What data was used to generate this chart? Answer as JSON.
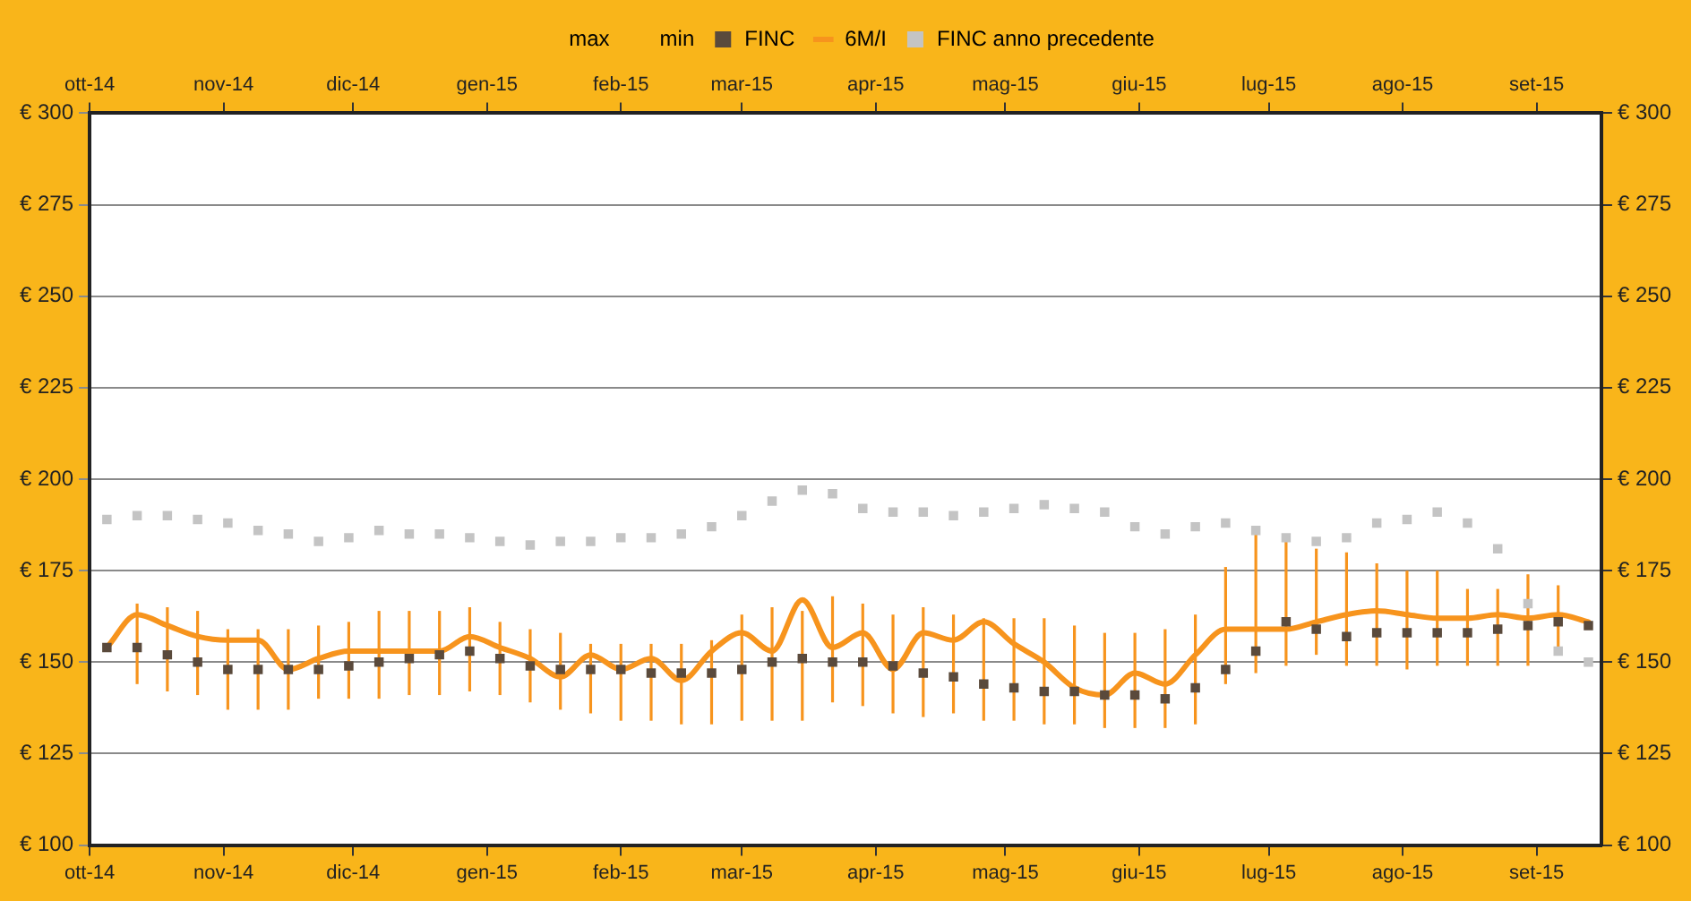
{
  "chart_data": {
    "type": "line",
    "x": [
      "2014-10-05",
      "2014-10-12",
      "2014-10-19",
      "2014-10-26",
      "2014-11-02",
      "2014-11-09",
      "2014-11-16",
      "2014-11-23",
      "2014-11-30",
      "2014-12-07",
      "2014-12-14",
      "2014-12-21",
      "2014-12-28",
      "2015-01-04",
      "2015-01-11",
      "2015-01-18",
      "2015-01-25",
      "2015-02-01",
      "2015-02-08",
      "2015-02-15",
      "2015-02-22",
      "2015-03-01",
      "2015-03-08",
      "2015-03-15",
      "2015-03-22",
      "2015-03-29",
      "2015-04-05",
      "2015-04-12",
      "2015-04-19",
      "2015-04-26",
      "2015-05-03",
      "2015-05-10",
      "2015-05-17",
      "2015-05-24",
      "2015-05-31",
      "2015-06-07",
      "2015-06-14",
      "2015-06-21",
      "2015-06-28",
      "2015-07-05",
      "2015-07-12",
      "2015-07-19",
      "2015-07-26",
      "2015-08-02",
      "2015-08-09",
      "2015-08-16",
      "2015-08-23",
      "2015-08-30",
      "2015-09-06",
      "2015-09-13"
    ],
    "series": [
      {
        "name": "FINC",
        "type": "scatter",
        "marker": "square",
        "color": "#5a4a3c",
        "values": [
          154,
          154,
          152,
          150,
          148,
          148,
          148,
          148,
          149,
          150,
          151,
          152,
          153,
          151,
          149,
          148,
          148,
          148,
          147,
          147,
          147,
          148,
          150,
          151,
          150,
          150,
          149,
          147,
          146,
          144,
          143,
          142,
          142,
          141,
          141,
          140,
          143,
          148,
          153,
          161,
          159,
          157,
          158,
          158,
          158,
          158,
          159,
          160,
          161,
          160
        ],
        "errors": [
          null,
          [
            144,
            166
          ],
          [
            142,
            165
          ],
          [
            141,
            164
          ],
          [
            137,
            159
          ],
          [
            137,
            159
          ],
          [
            137,
            159
          ],
          [
            140,
            160
          ],
          [
            140,
            161
          ],
          [
            140,
            164
          ],
          [
            141,
            164
          ],
          [
            141,
            164
          ],
          [
            142,
            165
          ],
          [
            141,
            161
          ],
          [
            139,
            159
          ],
          [
            137,
            158
          ],
          [
            136,
            155
          ],
          [
            134,
            155
          ],
          [
            134,
            155
          ],
          [
            133,
            155
          ],
          [
            133,
            156
          ],
          [
            134,
            163
          ],
          [
            134,
            165
          ],
          [
            134,
            164
          ],
          [
            139,
            168
          ],
          [
            138,
            166
          ],
          [
            136,
            163
          ],
          [
            135,
            165
          ],
          [
            136,
            163
          ],
          [
            134,
            162
          ],
          [
            134,
            162
          ],
          [
            133,
            162
          ],
          [
            133,
            160
          ],
          [
            132,
            158
          ],
          [
            132,
            158
          ],
          [
            132,
            159
          ],
          [
            133,
            163
          ],
          [
            144,
            176
          ],
          [
            147,
            185
          ],
          [
            149,
            184
          ],
          [
            152,
            181
          ],
          [
            149,
            180
          ],
          [
            149,
            177
          ],
          [
            148,
            175
          ],
          [
            149,
            175
          ],
          [
            149,
            170
          ],
          [
            149,
            170
          ],
          [
            149,
            174
          ],
          [
            153,
            171
          ],
          null
        ]
      },
      {
        "name": "6M/I",
        "type": "line",
        "color": "#f7941d",
        "values": [
          154,
          163,
          160,
          157,
          156,
          156,
          148,
          151,
          153,
          153,
          153,
          153,
          157,
          154,
          151,
          146,
          152,
          148,
          151,
          145,
          153,
          158,
          153,
          167,
          154,
          158,
          148,
          158,
          156,
          161,
          155,
          150,
          143,
          141,
          147,
          144,
          152,
          159,
          159,
          159,
          161,
          163,
          164,
          163,
          162,
          162,
          163,
          162,
          163,
          161
        ]
      },
      {
        "name": "FINC anno precedente",
        "type": "scatter",
        "marker": "square",
        "color": "#c4c4c4",
        "values": [
          189,
          190,
          190,
          189,
          188,
          186,
          185,
          183,
          184,
          186,
          185,
          185,
          184,
          183,
          182,
          183,
          183,
          184,
          184,
          185,
          187,
          190,
          194,
          197,
          196,
          192,
          191,
          191,
          190,
          191,
          192,
          193,
          192,
          191,
          187,
          185,
          187,
          188,
          186,
          184,
          183,
          184,
          188,
          189,
          191,
          188,
          181,
          166,
          153,
          150
        ]
      }
    ],
    "xlim": [
      "2014-10-01",
      "2015-09-16"
    ],
    "xticks": [
      {
        "value": "2014-10-01",
        "label": "ott-14"
      },
      {
        "value": "2014-11-01",
        "label": "nov-14"
      },
      {
        "value": "2014-12-01",
        "label": "dic-14"
      },
      {
        "value": "2015-01-01",
        "label": "gen-15"
      },
      {
        "value": "2015-02-01",
        "label": "feb-15"
      },
      {
        "value": "2015-03-01",
        "label": "mar-15"
      },
      {
        "value": "2015-04-01",
        "label": "apr-15"
      },
      {
        "value": "2015-05-01",
        "label": "mag-15"
      },
      {
        "value": "2015-06-01",
        "label": "giu-15"
      },
      {
        "value": "2015-07-01",
        "label": "lug-15"
      },
      {
        "value": "2015-08-01",
        "label": "ago-15"
      },
      {
        "value": "2015-09-01",
        "label": "set-15"
      }
    ],
    "x2lim": [
      "2014-10-01",
      "2015-09-16"
    ],
    "x2ticks": [
      {
        "value": "2014-10-01",
        "label": "ott-14"
      },
      {
        "value": "2014-11-01",
        "label": "nov-14"
      },
      {
        "value": "2014-12-01",
        "label": "dic-14"
      },
      {
        "value": "2015-01-01",
        "label": "gen-15"
      },
      {
        "value": "2015-02-01",
        "label": "feb-15"
      },
      {
        "value": "2015-03-01",
        "label": "mar-15"
      },
      {
        "value": "2015-04-01",
        "label": "apr-15"
      },
      {
        "value": "2015-05-01",
        "label": "mag-15"
      },
      {
        "value": "2015-06-01",
        "label": "giu-15"
      },
      {
        "value": "2015-07-01",
        "label": "lug-15"
      },
      {
        "value": "2015-08-01",
        "label": "ago-15"
      },
      {
        "value": "2015-09-01",
        "label": "set-15"
      }
    ],
    "ylim": [
      100,
      300
    ],
    "yticks": [
      {
        "value": 100,
        "label": "€ 100"
      },
      {
        "value": 125,
        "label": "€ 125"
      },
      {
        "value": 150,
        "label": "€ 150"
      },
      {
        "value": 175,
        "label": "€ 175"
      },
      {
        "value": 200,
        "label": "€ 200"
      },
      {
        "value": 225,
        "label": "€ 225"
      },
      {
        "value": 250,
        "label": "€ 250"
      },
      {
        "value": 275,
        "label": "€ 275"
      },
      {
        "value": 300,
        "label": "€ 300"
      }
    ],
    "y2lim": [
      100,
      300
    ],
    "y2ticks": [
      {
        "value": 100,
        "label": "€ 100"
      },
      {
        "value": 125,
        "label": "€ 125"
      },
      {
        "value": 150,
        "label": "€ 150"
      },
      {
        "value": 175,
        "label": "€ 175"
      },
      {
        "value": 200,
        "label": "€ 200"
      },
      {
        "value": 225,
        "label": "€ 225"
      },
      {
        "value": 250,
        "label": "€ 250"
      },
      {
        "value": 275,
        "label": "€ 275"
      },
      {
        "value": 300,
        "label": "€ 300"
      }
    ],
    "annotations": [
      "max",
      "min"
    ],
    "grid": "y",
    "legend": "top"
  }
}
